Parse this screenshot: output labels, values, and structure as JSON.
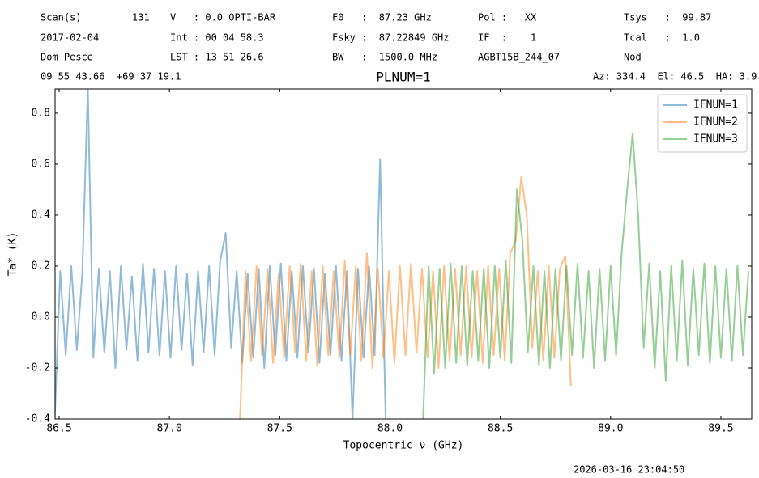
{
  "header": {
    "rows": [
      [
        "Scan(s)",
        "131",
        "V   : 0.0 OPTI-BAR",
        "F0   :  87.23 GHz",
        "Pol :   XX",
        "Tsys   :  99.87"
      ],
      [
        "2017-02-04",
        "Int : 00 04 58.3",
        "Fsky :  87.22849 GHz",
        "IF  :    1",
        "Tcal   :  1.0"
      ],
      [
        "Dom Pesce",
        "LST : 13 51 26.6",
        "BW   :  1500.0 MHz",
        "AGBT15B_244_07",
        "Nod"
      ],
      [
        "09 55 43.66  +69 37 19.1",
        "Az: 334.4  El: 46.5  HA: 3.9"
      ]
    ]
  },
  "chart_data": {
    "type": "line",
    "title": "PLNUM=1",
    "x_label": "Topocentric ν (GHz)",
    "y_label": "Ta* (K)",
    "xlim": [
      86.4816,
      89.6397
    ],
    "ylim": [
      -0.4,
      0.895
    ],
    "xticks": [
      86.5,
      {
        "value": 87,
        "label": "87.0"
      },
      87.5,
      {
        "value": 88,
        "label": "88.0"
      },
      88.5,
      {
        "value": 89,
        "label": "89.0"
      },
      89.5
    ],
    "yticks": [
      -0.4,
      -0.2,
      {
        "value": 0,
        "label": "0.0"
      },
      0.2,
      0.4,
      0.6,
      0.8
    ],
    "alpha": 0.5,
    "legend": "upper right",
    "series": [
      {
        "name": "IFNUM=1",
        "color": "#1f77b4",
        "x": [
          86.48,
          86.505,
          86.53,
          86.555,
          86.58,
          86.605,
          86.63,
          86.655,
          86.68,
          86.705,
          86.73,
          86.755,
          86.78,
          86.805,
          86.83,
          86.855,
          86.88,
          86.905,
          86.93,
          86.955,
          86.98,
          87.005,
          87.03,
          87.055,
          87.08,
          87.105,
          87.13,
          87.155,
          87.18,
          87.205,
          87.23,
          87.255,
          87.28,
          87.305,
          87.33,
          87.355,
          87.38,
          87.405,
          87.43,
          87.455,
          87.48,
          87.505,
          87.53,
          87.555,
          87.58,
          87.605,
          87.63,
          87.655,
          87.68,
          87.705,
          87.73,
          87.755,
          87.78,
          87.805,
          87.83,
          87.855,
          87.88,
          87.905,
          87.93,
          87.955,
          87.98
        ],
        "values": [
          -0.4,
          0.18,
          -0.15,
          0.2,
          -0.13,
          0.17,
          0.9,
          -0.16,
          0.19,
          -0.14,
          0.18,
          -0.2,
          0.2,
          -0.13,
          0.16,
          -0.17,
          0.21,
          -0.14,
          0.19,
          -0.15,
          0.18,
          -0.16,
          0.2,
          -0.13,
          0.17,
          -0.19,
          0.18,
          -0.14,
          0.2,
          -0.15,
          0.22,
          0.33,
          -0.12,
          0.18,
          -0.18,
          0.17,
          -0.16,
          0.19,
          -0.2,
          0.2,
          -0.15,
          0.21,
          -0.17,
          0.18,
          -0.16,
          0.2,
          -0.14,
          0.19,
          -0.18,
          0.17,
          -0.15,
          0.2,
          -0.17,
          0.18,
          -0.4,
          0.19,
          -0.16,
          0.2,
          -0.15,
          0.62,
          -0.4
        ]
      },
      {
        "name": "IFNUM=2",
        "color": "#ff7f0e",
        "x": [
          87.32,
          87.345,
          87.37,
          87.395,
          87.42,
          87.445,
          87.47,
          87.495,
          87.52,
          87.545,
          87.57,
          87.595,
          87.62,
          87.645,
          87.67,
          87.695,
          87.72,
          87.745,
          87.77,
          87.795,
          87.82,
          87.845,
          87.87,
          87.895,
          87.92,
          87.945,
          87.97,
          87.995,
          88.02,
          88.045,
          88.07,
          88.095,
          88.12,
          88.145,
          88.17,
          88.195,
          88.22,
          88.245,
          88.27,
          88.295,
          88.32,
          88.345,
          88.37,
          88.395,
          88.42,
          88.445,
          88.47,
          88.495,
          88.52,
          88.545,
          88.57,
          88.595,
          88.62,
          88.645,
          88.67,
          88.695,
          88.72,
          88.745,
          88.77,
          88.795,
          88.82
        ],
        "values": [
          -0.4,
          0.18,
          -0.17,
          0.2,
          -0.15,
          0.19,
          -0.18,
          0.17,
          -0.16,
          0.2,
          -0.14,
          0.21,
          -0.17,
          0.18,
          -0.19,
          0.2,
          -0.15,
          0.18,
          -0.16,
          0.22,
          -0.15,
          0.2,
          -0.17,
          0.25,
          -0.2,
          0.19,
          -0.16,
          0.18,
          -0.18,
          0.2,
          -0.15,
          0.21,
          -0.14,
          0.19,
          -0.16,
          0.18,
          -0.2,
          0.2,
          -0.17,
          0.19,
          -0.15,
          0.2,
          -0.16,
          0.18,
          -0.18,
          0.2,
          -0.15,
          0.19,
          -0.17,
          0.25,
          0.3,
          0.55,
          0.4,
          -0.12,
          0.18,
          -0.17,
          0.2,
          -0.16,
          0.19,
          0.24,
          -0.27
        ]
      },
      {
        "name": "IFNUM=3",
        "color": "#2ca02c",
        "x": [
          88.15,
          88.175,
          88.2,
          88.225,
          88.25,
          88.275,
          88.3,
          88.325,
          88.35,
          88.375,
          88.4,
          88.425,
          88.45,
          88.475,
          88.5,
          88.525,
          88.55,
          88.575,
          88.6,
          88.625,
          88.65,
          88.675,
          88.7,
          88.725,
          88.75,
          88.775,
          88.8,
          88.825,
          88.85,
          88.875,
          88.9,
          88.925,
          88.95,
          88.975,
          89,
          89.025,
          89.05,
          89.075,
          89.1,
          89.125,
          89.15,
          89.175,
          89.2,
          89.225,
          89.25,
          89.275,
          89.3,
          89.325,
          89.35,
          89.375,
          89.4,
          89.425,
          89.45,
          89.475,
          89.5,
          89.525,
          89.55,
          89.575,
          89.6,
          89.625
        ],
        "values": [
          -0.4,
          0.2,
          -0.22,
          0.19,
          -0.2,
          0.21,
          -0.18,
          0.2,
          -0.19,
          0.18,
          -0.17,
          0.19,
          -0.2,
          0.2,
          -0.16,
          0.22,
          -0.18,
          0.5,
          0.3,
          -0.14,
          0.2,
          -0.19,
          0.18,
          -0.2,
          0.19,
          -0.17,
          0.2,
          -0.15,
          0.21,
          -0.16,
          0.18,
          -0.2,
          0.19,
          -0.17,
          0.2,
          -0.15,
          0.25,
          0.5,
          0.72,
          0.4,
          -0.12,
          0.21,
          -0.2,
          0.18,
          -0.25,
          0.2,
          -0.17,
          0.22,
          -0.19,
          0.19,
          -0.15,
          0.21,
          -0.18,
          0.2,
          -0.16,
          0.19,
          -0.17,
          0.2,
          -0.15,
          0.18
        ]
      }
    ]
  },
  "footer": "2026-03-16 23:04:50"
}
